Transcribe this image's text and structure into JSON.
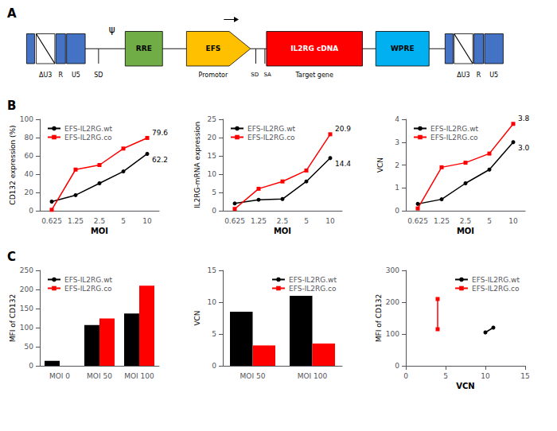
{
  "chart_data": [
    {
      "type": "diagram",
      "title": "A",
      "annotations": [
        "ΔU3",
        "R",
        "U5",
        "SD",
        "ψ",
        "RRE",
        "EFS",
        "Promotor",
        "SD",
        "SA",
        "IL2RG cDNA",
        "Target gene",
        "WPRE",
        "ΔU3",
        "R",
        "U5"
      ],
      "colors": [
        "#4472C4",
        "#70AD47",
        "#FFC000",
        "#FF0000",
        "#00B0F0"
      ]
    },
    {
      "type": "line",
      "title": "B",
      "xlabel": "MOI",
      "ylabel": "CD132 expression (%)",
      "categories": [
        "0.625",
        "1.25",
        "2.5",
        "5",
        "10"
      ],
      "series": [
        {
          "name": "EFS-IL2RG.wt",
          "color": "black",
          "marker": "circle",
          "values": [
            10,
            17,
            30,
            43,
            62.2
          ]
        },
        {
          "name": "EFS-IL2RG.co",
          "color": "#FF0000",
          "marker": "square",
          "values": [
            1,
            45,
            50,
            68,
            79.6
          ]
        }
      ],
      "annotations": [
        {
          "text": "79.6",
          "x": "10",
          "y": 79.6
        },
        {
          "text": "62.2",
          "x": "10",
          "y": 62.2
        }
      ],
      "ylim": [
        0,
        100
      ],
      "yticks": [
        0,
        20,
        40,
        60,
        80,
        100
      ],
      "legend": "upper left",
      "grid": false
    },
    {
      "type": "line",
      "xlabel": "MOI",
      "ylabel": "IL2RG-mRNA expression",
      "categories": [
        "0.625",
        "1.25",
        "2.5",
        "5",
        "10"
      ],
      "series": [
        {
          "name": "EFS-IL2RG.wt",
          "color": "black",
          "marker": "circle",
          "values": [
            2.0,
            3.0,
            3.2,
            8.0,
            14.4
          ]
        },
        {
          "name": "EFS-IL2RG.co",
          "color": "#FF0000",
          "marker": "square",
          "values": [
            0.5,
            6.0,
            8.0,
            11.0,
            20.9
          ]
        }
      ],
      "annotations": [
        {
          "text": "20.9",
          "x": "10",
          "y": 20.9
        },
        {
          "text": "14.4",
          "x": "10",
          "y": 14.4
        }
      ],
      "ylim": [
        0,
        25
      ],
      "yticks": [
        0,
        5,
        10,
        15,
        20,
        25
      ],
      "legend": "upper left",
      "grid": false
    },
    {
      "type": "line",
      "xlabel": "MOI",
      "ylabel": "VCN",
      "categories": [
        "0.625",
        "1.25",
        "2.5",
        "5",
        "10"
      ],
      "series": [
        {
          "name": "EFS-IL2RG.wt",
          "color": "black",
          "marker": "circle",
          "values": [
            0.3,
            0.5,
            1.2,
            1.8,
            3.0
          ]
        },
        {
          "name": "EFS-IL2RG.co",
          "color": "#FF0000",
          "marker": "square",
          "values": [
            0.1,
            1.9,
            2.1,
            2.5,
            3.8
          ]
        }
      ],
      "annotations": [
        {
          "text": "3.8",
          "x": "10",
          "y": 3.8
        },
        {
          "text": "3.0",
          "x": "10",
          "y": 3.0
        }
      ],
      "ylim": [
        0,
        4
      ],
      "yticks": [
        0,
        1,
        2,
        3,
        4
      ],
      "legend": "upper left",
      "grid": false
    },
    {
      "type": "bar",
      "title": "C",
      "ylabel": "MFI of CD132",
      "categories": [
        "MOI 0",
        "MOI 50",
        "MOI 100"
      ],
      "series": [
        {
          "name": "EFS-IL2RG.wt",
          "color": "black",
          "values": [
            13,
            107,
            137
          ]
        },
        {
          "name": "EFS-IL2RG.co",
          "color": "#FF0000",
          "values": [
            0,
            124,
            210
          ]
        }
      ],
      "ylim": [
        0,
        250
      ],
      "yticks": [
        0,
        50,
        100,
        150,
        200,
        250
      ],
      "legend": "upper left",
      "grid": false
    },
    {
      "type": "bar",
      "ylabel": "VCN",
      "categories": [
        "MOI 50",
        "MOI 100"
      ],
      "series": [
        {
          "name": "EFS-IL2RG.wt",
          "color": "black",
          "values": [
            8.5,
            11.0
          ]
        },
        {
          "name": "EFS-IL2RG.co",
          "color": "#FF0000",
          "values": [
            3.2,
            3.5
          ]
        }
      ],
      "ylim": [
        0,
        15
      ],
      "yticks": [
        0,
        5,
        10,
        15
      ],
      "legend": "upper right",
      "grid": false
    },
    {
      "type": "line",
      "xlabel": "VCN",
      "ylabel": "MFI of CD132",
      "series": [
        {
          "name": "EFS-IL2RG.wt",
          "color": "black",
          "marker": "circle",
          "x": [
            10.0,
            11.0
          ],
          "values": [
            105,
            120
          ]
        },
        {
          "name": "EFS-IL2RG.co",
          "color": "#FF0000",
          "marker": "square",
          "x": [
            4.0,
            4.0
          ],
          "values": [
            115,
            210
          ]
        }
      ],
      "xlim": [
        0,
        15
      ],
      "xticks": [
        0,
        5,
        10,
        15
      ],
      "ylim": [
        0,
        300
      ],
      "yticks": [
        0,
        100,
        200,
        300
      ],
      "legend": "upper right",
      "grid": false
    }
  ]
}
